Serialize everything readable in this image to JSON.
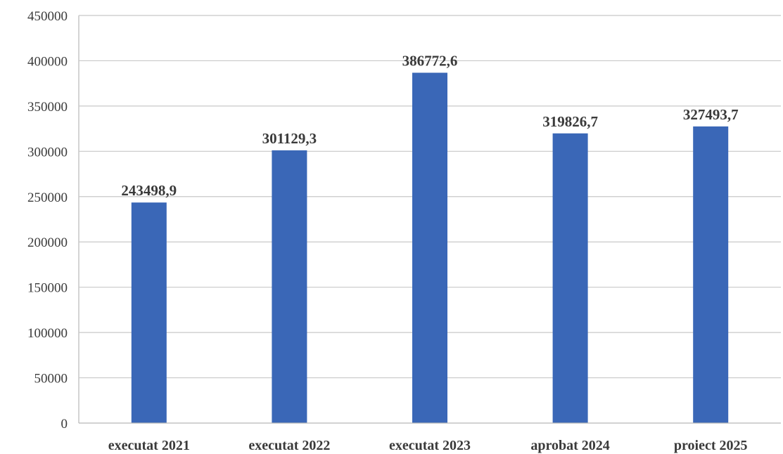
{
  "chart_data": {
    "type": "bar",
    "categories": [
      "executat 2021",
      "executat 2022",
      "executat 2023",
      "aprobat 2024",
      "proiect 2025"
    ],
    "values": [
      243498.9,
      301129.3,
      386772.6,
      319826.7,
      327493.7
    ],
    "data_labels": [
      "243498,9",
      "301129,3",
      "386772,6",
      "319826,7",
      "327493,7"
    ],
    "title": "",
    "xlabel": "",
    "ylabel": "",
    "ylim": [
      0,
      450000
    ],
    "y_ticks": [
      0,
      50000,
      100000,
      150000,
      200000,
      250000,
      300000,
      350000,
      400000,
      450000
    ],
    "y_tick_labels": [
      "0",
      "50000",
      "100000",
      "150000",
      "200000",
      "250000",
      "300000",
      "350000",
      "400000",
      "450000"
    ],
    "grid": true,
    "legend": "none",
    "bar_color": "#3a67b7"
  }
}
